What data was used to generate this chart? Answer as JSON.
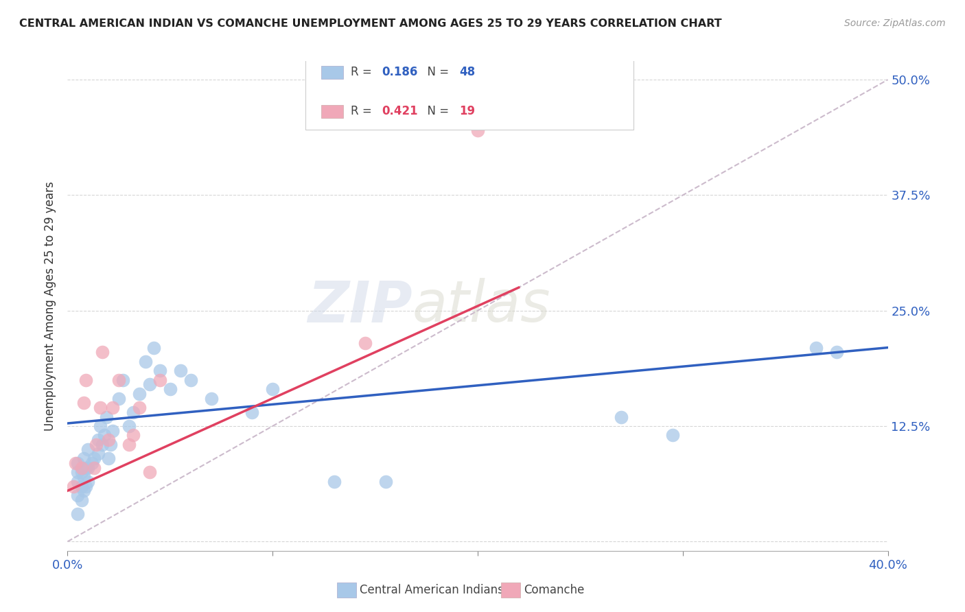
{
  "title": "CENTRAL AMERICAN INDIAN VS COMANCHE UNEMPLOYMENT AMONG AGES 25 TO 29 YEARS CORRELATION CHART",
  "source": "Source: ZipAtlas.com",
  "ylabel": "Unemployment Among Ages 25 to 29 years",
  "xlim": [
    0.0,
    0.4
  ],
  "ylim": [
    -0.01,
    0.52
  ],
  "yticks": [
    0.0,
    0.125,
    0.25,
    0.375,
    0.5
  ],
  "ytick_labels": [
    "",
    "12.5%",
    "25.0%",
    "37.5%",
    "50.0%"
  ],
  "xticks": [
    0.0,
    0.1,
    0.2,
    0.3,
    0.4
  ],
  "xtick_labels": [
    "0.0%",
    "",
    "",
    "",
    "40.0%"
  ],
  "blue_R": "0.186",
  "blue_N": "48",
  "pink_R": "0.421",
  "pink_N": "19",
  "blue_color": "#a8c8e8",
  "pink_color": "#f0a8b8",
  "blue_line_color": "#3060c0",
  "pink_line_color": "#e04060",
  "diagonal_line_color": "#ccbbcc",
  "watermark_zip": "ZIP",
  "watermark_atlas": "atlas",
  "legend_blue_label": "Central American Indians",
  "legend_pink_label": "Comanche",
  "blue_scatter_x": [
    0.005,
    0.005,
    0.005,
    0.005,
    0.005,
    0.007,
    0.007,
    0.007,
    0.008,
    0.008,
    0.008,
    0.009,
    0.009,
    0.01,
    0.01,
    0.01,
    0.012,
    0.013,
    0.015,
    0.015,
    0.016,
    0.017,
    0.018,
    0.019,
    0.02,
    0.021,
    0.022,
    0.025,
    0.027,
    0.03,
    0.032,
    0.035,
    0.038,
    0.04,
    0.042,
    0.045,
    0.05,
    0.055,
    0.06,
    0.07,
    0.09,
    0.1,
    0.13,
    0.155,
    0.27,
    0.295,
    0.365,
    0.375
  ],
  "blue_scatter_y": [
    0.03,
    0.05,
    0.065,
    0.075,
    0.085,
    0.045,
    0.06,
    0.075,
    0.055,
    0.07,
    0.09,
    0.06,
    0.08,
    0.065,
    0.08,
    0.1,
    0.085,
    0.09,
    0.095,
    0.11,
    0.125,
    0.105,
    0.115,
    0.135,
    0.09,
    0.105,
    0.12,
    0.155,
    0.175,
    0.125,
    0.14,
    0.16,
    0.195,
    0.17,
    0.21,
    0.185,
    0.165,
    0.185,
    0.175,
    0.155,
    0.14,
    0.165,
    0.065,
    0.065,
    0.135,
    0.115,
    0.21,
    0.205
  ],
  "pink_scatter_x": [
    0.003,
    0.004,
    0.007,
    0.008,
    0.009,
    0.013,
    0.014,
    0.016,
    0.017,
    0.02,
    0.022,
    0.025,
    0.03,
    0.032,
    0.035,
    0.04,
    0.045,
    0.145,
    0.2
  ],
  "pink_scatter_y": [
    0.06,
    0.085,
    0.08,
    0.15,
    0.175,
    0.08,
    0.105,
    0.145,
    0.205,
    0.11,
    0.145,
    0.175,
    0.105,
    0.115,
    0.145,
    0.075,
    0.175,
    0.215,
    0.445
  ],
  "blue_line_x": [
    0.0,
    0.4
  ],
  "blue_line_y": [
    0.128,
    0.21
  ],
  "pink_line_x": [
    0.0,
    0.22
  ],
  "pink_line_y": [
    0.055,
    0.275
  ],
  "diag_line_x": [
    0.0,
    0.4
  ],
  "diag_line_y": [
    0.0,
    0.5
  ]
}
